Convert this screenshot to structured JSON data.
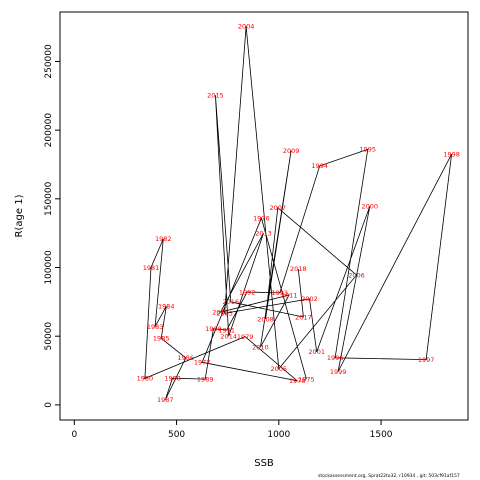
{
  "chart_data": {
    "type": "line",
    "xlabel": "SSB",
    "ylabel": "R(age 1)",
    "x_ticks": [
      0,
      500,
      1000,
      1500
    ],
    "y_ticks": [
      0,
      50000,
      100000,
      150000,
      200000,
      250000
    ],
    "xlim": [
      -70,
      1925
    ],
    "ylim": [
      -11000,
      286000
    ],
    "series": [
      {
        "points": [
          {
            "year": "1975",
            "x": 1135,
            "y": 18800
          },
          {
            "year": "1976",
            "x": 915,
            "y": 136000
          },
          {
            "year": "1977",
            "x": 625,
            "y": 31000
          },
          {
            "year": "1978",
            "x": 1090,
            "y": 17500
          },
          {
            "year": "1979",
            "x": 835,
            "y": 49700
          },
          {
            "year": "1980",
            "x": 345,
            "y": 19300
          },
          {
            "year": "1981",
            "x": 375,
            "y": 100000
          },
          {
            "year": "1982",
            "x": 435,
            "y": 120800
          },
          {
            "year": "1983",
            "x": 395,
            "y": 57000
          },
          {
            "year": "1984",
            "x": 450,
            "y": 71800
          },
          {
            "year": "1985",
            "x": 425,
            "y": 48500
          },
          {
            "year": "1986",
            "x": 545,
            "y": 34200
          },
          {
            "year": "1987",
            "x": 445,
            "y": 3800
          },
          {
            "year": "1988",
            "x": 480,
            "y": 19400
          },
          {
            "year": "1989",
            "x": 640,
            "y": 18800
          },
          {
            "year": "1990",
            "x": 680,
            "y": 55400
          },
          {
            "year": "1991",
            "x": 745,
            "y": 54500
          },
          {
            "year": "1992",
            "x": 845,
            "y": 82200
          },
          {
            "year": "1993",
            "x": 1005,
            "y": 81500
          },
          {
            "year": "1994",
            "x": 1200,
            "y": 174000
          },
          {
            "year": "1995",
            "x": 1435,
            "y": 186000
          },
          {
            "year": "1996",
            "x": 1275,
            "y": 34300
          },
          {
            "year": "1997",
            "x": 1720,
            "y": 33000
          },
          {
            "year": "1998",
            "x": 1845,
            "y": 182500
          },
          {
            "year": "1999",
            "x": 1290,
            "y": 24300
          },
          {
            "year": "2000",
            "x": 1445,
            "y": 144500
          },
          {
            "year": "2001",
            "x": 1185,
            "y": 38600
          },
          {
            "year": "2002",
            "x": 1150,
            "y": 77200
          },
          {
            "year": "2003",
            "x": 735,
            "y": 66700
          },
          {
            "year": "2004",
            "x": 840,
            "y": 275500
          },
          {
            "year": "2005",
            "x": 1000,
            "y": 26300
          },
          {
            "year": "2006",
            "x": 1380,
            "y": 94500
          },
          {
            "year": "2007",
            "x": 995,
            "y": 143500
          },
          {
            "year": "2008",
            "x": 935,
            "y": 62500
          },
          {
            "year": "2009",
            "x": 1060,
            "y": 185000
          },
          {
            "year": "2010",
            "x": 910,
            "y": 42000
          },
          {
            "year": "2011",
            "x": 1050,
            "y": 80000
          },
          {
            "year": "2012",
            "x": 715,
            "y": 67500
          },
          {
            "year": "2013",
            "x": 925,
            "y": 125000
          },
          {
            "year": "2014",
            "x": 755,
            "y": 50000
          },
          {
            "year": "2015",
            "x": 690,
            "y": 225500
          },
          {
            "year": "2016",
            "x": 765,
            "y": 75000
          },
          {
            "year": "2017",
            "x": 1120,
            "y": 64000
          },
          {
            "year": "2018",
            "x": 1095,
            "y": 99000
          }
        ]
      }
    ],
    "grid": false,
    "legend": "none"
  },
  "footnote": "stockassessment.org, Sprat22to32, r10934 , git: 503cf91af157"
}
